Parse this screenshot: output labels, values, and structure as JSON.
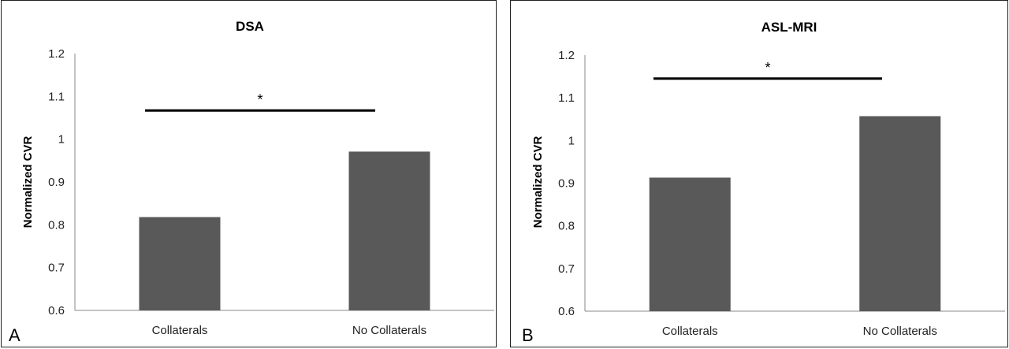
{
  "chart_data": [
    {
      "type": "bar",
      "panel_letter": "A",
      "title": "DSA",
      "ylabel": "Normalized CVR",
      "xlabel": "",
      "categories": [
        "Collaterals",
        "No Collaterals"
      ],
      "values": [
        0.818,
        0.971
      ],
      "ylim": [
        0.6,
        1.2
      ],
      "yticks": [
        "0.6",
        "0.7",
        "0.8",
        "0.9",
        "1",
        "1.1",
        "1.2"
      ],
      "bar_color": "#595959",
      "grid": false,
      "significance": {
        "label": "*",
        "level": 1.067
      }
    },
    {
      "type": "bar",
      "panel_letter": "B",
      "title": "ASL-MRI",
      "ylabel": "Normalized CVR",
      "xlabel": "",
      "categories": [
        "Collaterals",
        "No Collaterals"
      ],
      "values": [
        0.913,
        1.057
      ],
      "ylim": [
        0.6,
        1.2
      ],
      "yticks": [
        "0.6",
        "0.7",
        "0.8",
        "0.9",
        "1",
        "1.1",
        "1.2"
      ],
      "bar_color": "#595959",
      "grid": false,
      "significance": {
        "label": "*",
        "level": 1.145
      }
    }
  ]
}
